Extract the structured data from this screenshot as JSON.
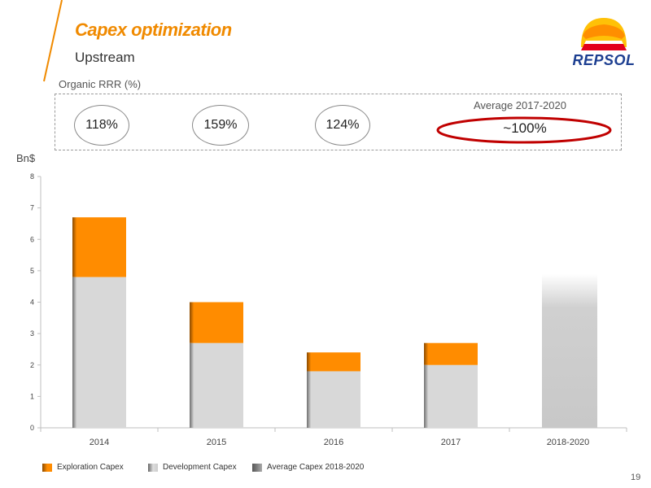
{
  "header": {
    "title": "Capex optimization",
    "subtitle": "Upstream",
    "logo_text": "REPSOL"
  },
  "rrr": {
    "label": "Organic RRR (%)",
    "values": [
      "118%",
      "159%",
      "124%"
    ],
    "average_label": "Average 2017-2020",
    "average_value": "~100%"
  },
  "chart_data": {
    "type": "bar",
    "stacked": true,
    "ylabel": "Bn$",
    "ylim": [
      0,
      8
    ],
    "yticks": [
      0,
      1,
      2,
      3,
      4,
      5,
      6,
      7,
      8
    ],
    "categories": [
      "2014",
      "2015",
      "2016",
      "2017",
      "2018-2020"
    ],
    "series": [
      {
        "name": "Development Capex",
        "values": [
          4.8,
          2.7,
          1.8,
          2.0,
          null
        ],
        "color": "#d6d6d6"
      },
      {
        "name": "Exploration Capex",
        "values": [
          1.9,
          1.3,
          0.6,
          0.7,
          null
        ],
        "color": "#ff8c00"
      },
      {
        "name": "Average Capex 2018-2020",
        "values": [
          null,
          null,
          null,
          null,
          4.9
        ],
        "color": "#c8c8c8"
      }
    ],
    "legend_position": "bottom"
  },
  "legend": {
    "exploration": "Exploration Capex",
    "development": "Development Capex",
    "average": "Average Capex 2018-2020"
  },
  "colors": {
    "accent": "#f08a00",
    "brand_blue": "#1d3f91",
    "highlight_red": "#c00000"
  },
  "page_number": "19"
}
